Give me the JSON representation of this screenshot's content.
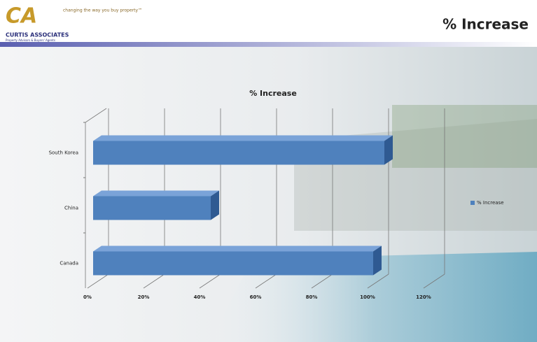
{
  "header": {
    "logo": "CA",
    "tagline": "changing the way you buy property™",
    "company": "CURTIS ASSOCIATES",
    "subtitle": "Property Advisors & Buyers' Agents",
    "title": "% Increase"
  },
  "chart_data": {
    "type": "bar",
    "orientation": "horizontal",
    "title": "% Increase",
    "categories": [
      "South Korea",
      "China",
      "Canada"
    ],
    "series": [
      {
        "name": "% Increase",
        "color": "#4f81bd",
        "values": [
          104,
          42,
          100
        ]
      }
    ],
    "xlim": [
      0,
      120
    ],
    "xticks": [
      {
        "value": 0,
        "label": "0%"
      },
      {
        "value": 20,
        "label": "20%"
      },
      {
        "value": 40,
        "label": "40%"
      },
      {
        "value": 60,
        "label": "60%"
      },
      {
        "value": 80,
        "label": "80%"
      },
      {
        "value": 100,
        "label": "100%"
      },
      {
        "value": 120,
        "label": "120%"
      }
    ],
    "grid": true,
    "legend": "right"
  }
}
